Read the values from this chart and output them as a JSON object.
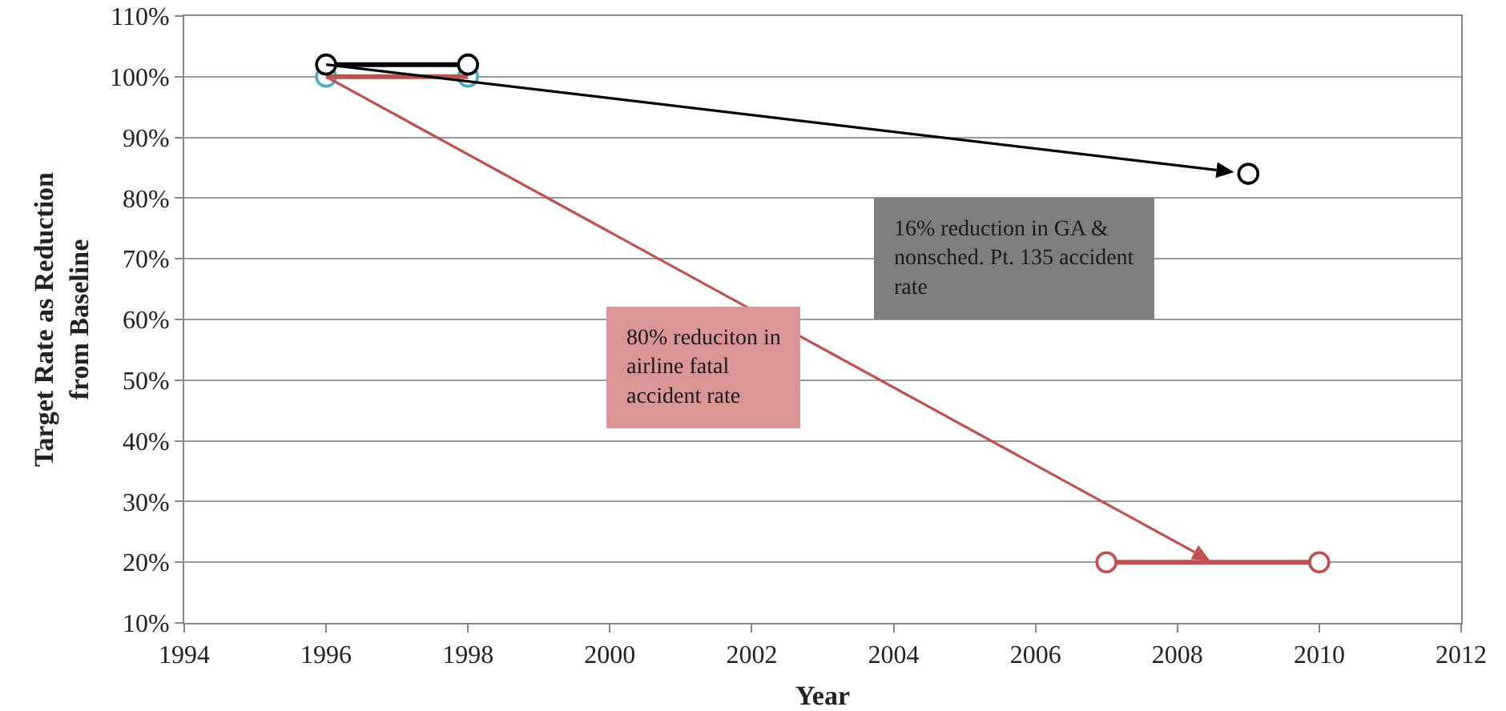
{
  "chart_data": {
    "type": "line",
    "xlabel": "Year",
    "ylabel": "Target Rate as Reduction\nfrom Baseline",
    "xlim": [
      1994,
      2012
    ],
    "xticks": [
      1994,
      1996,
      1998,
      2000,
      2002,
      2004,
      2006,
      2008,
      2010,
      2012
    ],
    "ylim": [
      10,
      110
    ],
    "yticks": [
      {
        "value": 10,
        "label": "10%"
      },
      {
        "value": 20,
        "label": "20%"
      },
      {
        "value": 30,
        "label": "30%"
      },
      {
        "value": 40,
        "label": "40%"
      },
      {
        "value": 50,
        "label": "50%"
      },
      {
        "value": 60,
        "label": "60%"
      },
      {
        "value": 70,
        "label": "70%"
      },
      {
        "value": 80,
        "label": "80%"
      },
      {
        "value": 90,
        "label": "90%"
      },
      {
        "value": 100,
        "label": "100%"
      },
      {
        "value": 110,
        "label": "110%"
      }
    ],
    "grid": "y",
    "series": [
      {
        "type": "scatter",
        "color": "#4bacc6",
        "x": [
          1996,
          1998
        ],
        "values": [
          100,
          100
        ],
        "marker": "circle"
      },
      {
        "type": "line",
        "color": "#c0504d",
        "x": [
          1996,
          1998
        ],
        "values": [
          100,
          100
        ]
      },
      {
        "type": "line",
        "color": "#c0504d",
        "x": [
          2007,
          2010
        ],
        "values": [
          20,
          20
        ],
        "marker": "circle"
      },
      {
        "type": "line",
        "color": "#000000",
        "x": [
          1996,
          1998
        ],
        "values": [
          102,
          102
        ],
        "marker": "circle"
      },
      {
        "type": "scatter",
        "color": "#000000",
        "x": [
          2009
        ],
        "values": [
          84
        ],
        "marker": "circle"
      }
    ],
    "annotations": [
      "16% reduction in GA & nonsched. Pt. 135 accident rate",
      "80% reduciton in airline fatal accident rate"
    ],
    "colors": [
      "#7f7f7f",
      "#d99694"
    ]
  }
}
